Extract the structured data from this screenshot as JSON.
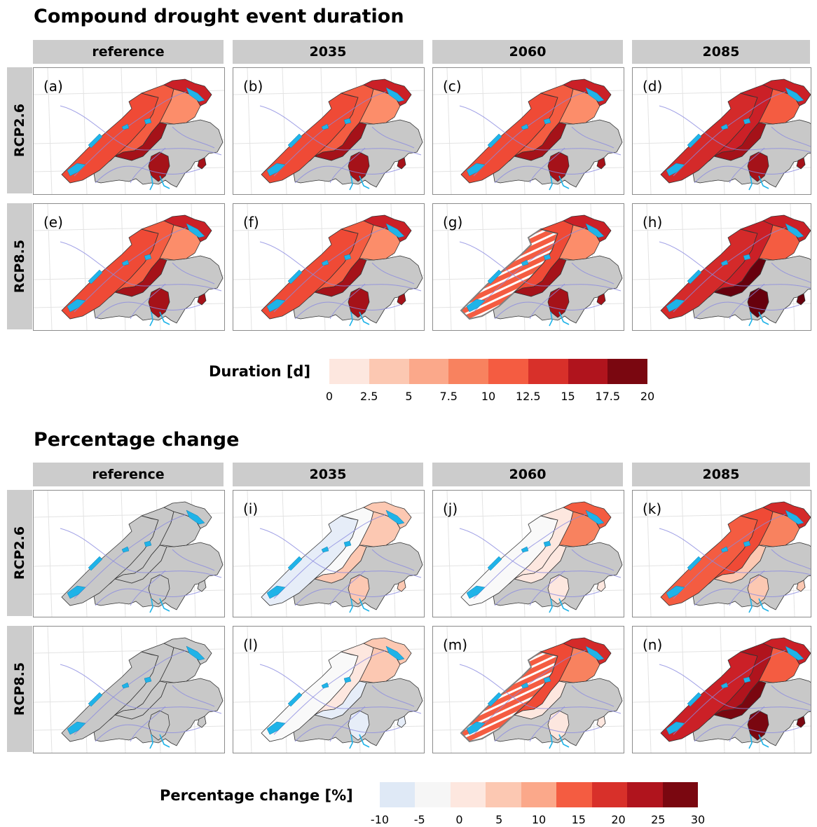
{
  "sections": [
    {
      "title": "Compound drought event duration",
      "columns": [
        "reference",
        "2035",
        "2060",
        "2085"
      ],
      "rows": [
        "RCP2.6",
        "RCP8.5"
      ],
      "panel_labels": [
        "(a)",
        "(b)",
        "(c)",
        "(d)",
        "(e)",
        "(f)",
        "(g)",
        "(h)"
      ],
      "panel_fills": [
        [
          "#ef4a36",
          "#f45c41",
          "#fc8d6a",
          "#cb2027",
          "#a51219"
        ],
        [
          "#ef4a36",
          "#f45c41",
          "#fc8d6a",
          "#cb2027",
          "#a51219"
        ],
        [
          "#ef4a36",
          "#f45c41",
          "#fc8d6a",
          "#cb2027",
          "#a51219"
        ],
        [
          "#d42a2a",
          "#cb2027",
          "#f45c41",
          "#cb2027",
          "#a51219"
        ],
        [
          "#ef4a36",
          "#f45c41",
          "#fc8d6a",
          "#cb2027",
          "#a51219"
        ],
        [
          "#ef4a36",
          "#f45c41",
          "#fc8d6a",
          "#cb2027",
          "#a51219"
        ],
        [
          "#f45c41",
          "#ef4a36",
          "#fc8d6a",
          "#cb2027",
          "#a51219"
        ],
        [
          "#d42a2a",
          "#cb2027",
          "#f45c41",
          "#cb2027",
          "#67000d"
        ]
      ],
      "panel_hatched": [
        false,
        false,
        false,
        false,
        false,
        false,
        true,
        false
      ],
      "legend": {
        "title": "Duration [d]",
        "ticks": [
          "0",
          "2.5",
          "5",
          "7.5",
          "10",
          "12.5",
          "15",
          "17.5",
          "20"
        ],
        "colors": [
          "#fde7df",
          "#fcc8b2",
          "#fba88a",
          "#f8825f",
          "#f45c41",
          "#d8302a",
          "#b0141d",
          "#7a0710"
        ]
      }
    },
    {
      "title": "Percentage change",
      "columns": [
        "reference",
        "2035",
        "2060",
        "2085"
      ],
      "rows": [
        "RCP2.6",
        "RCP8.5"
      ],
      "panel_labels": [
        "",
        "(i)",
        "(j)",
        "(k)",
        "",
        "(l)",
        "(m)",
        "(n)"
      ],
      "panel_fills": [
        [
          "#c8c8c8",
          "#c8c8c8",
          "#c8c8c8",
          "#c8c8c8",
          "#c8c8c8"
        ],
        [
          "#e6edf8",
          "#f9f9f9",
          "#fcc8b2",
          "#fcc8b2",
          "#fcc8b2"
        ],
        [
          "#f9f9f9",
          "#fde7df",
          "#f8825f",
          "#f45c41",
          "#fde7df"
        ],
        [
          "#f45c41",
          "#ef4a36",
          "#f8825f",
          "#d42a2a",
          "#fcc8b2"
        ],
        [
          "#c8c8c8",
          "#c8c8c8",
          "#c8c8c8",
          "#c8c8c8",
          "#c8c8c8"
        ],
        [
          "#f9f9f9",
          "#fde7df",
          "#fcc8b2",
          "#fcc8b2",
          "#e6edf8"
        ],
        [
          "#f45c41",
          "#ef4a36",
          "#f8825f",
          "#d42a2a",
          "#fde7df"
        ],
        [
          "#cb2027",
          "#b0141d",
          "#f45c41",
          "#cb2027",
          "#7a0710"
        ]
      ],
      "panel_hatched": [
        false,
        false,
        false,
        false,
        false,
        false,
        true,
        false
      ],
      "legend": {
        "title": "Percentage change [%]",
        "ticks": [
          "-10",
          "-5",
          "0",
          "5",
          "10",
          "15",
          "20",
          "25",
          "30"
        ],
        "colors": [
          "#dfe9f6",
          "#f6f6f6",
          "#fde7df",
          "#fcc8b2",
          "#fba88a",
          "#f45c41",
          "#d8302a",
          "#b0141d",
          "#7a0710"
        ]
      }
    }
  ],
  "colors": {
    "alpine_region": "#c8c8c8",
    "lake": "#1fb3e8",
    "river": "#8a8ae0",
    "border": "#333333",
    "strip_background": "#cccccc"
  }
}
